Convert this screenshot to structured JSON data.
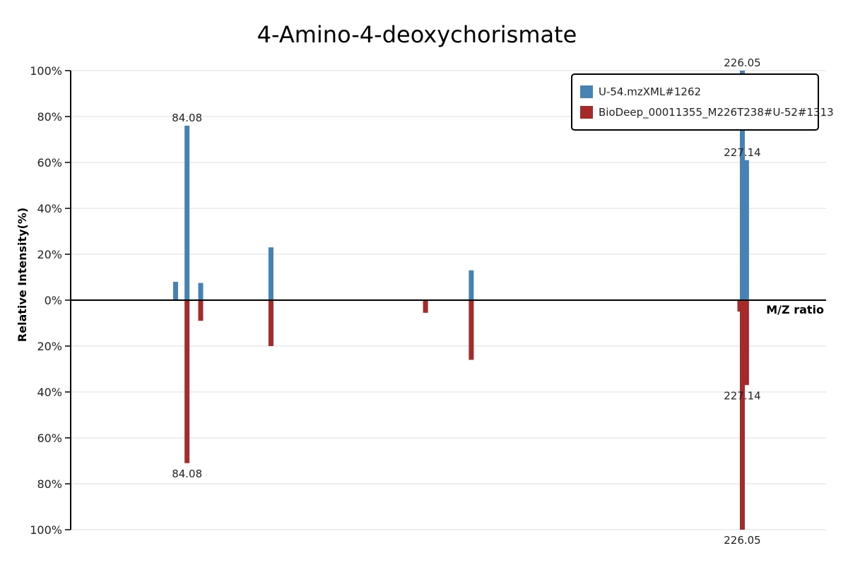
{
  "chart_data": {
    "type": "bar",
    "title": "4-Amino-4-deoxychorismate",
    "ylabel": "Relative Intensity(%)",
    "xlabel": "M/Z ratio",
    "y_ticks_top": [
      "100%",
      "80%",
      "60%",
      "40%",
      "20%",
      "0%"
    ],
    "y_ticks_bottom": [
      "20%",
      "40%",
      "60%",
      "80%",
      "100%"
    ],
    "ylim": [
      -100,
      100
    ],
    "xlim": [
      50,
      248
    ],
    "grid": true,
    "legend_position": "top-right",
    "series": [
      {
        "name": "U-54.mzXML#1262",
        "color": "#4682b4",
        "direction": "up",
        "peaks": [
          {
            "mz": 77.5,
            "intensity": 8
          },
          {
            "mz": 80.5,
            "intensity": 76
          },
          {
            "mz": 84.08,
            "intensity": 7.5
          },
          {
            "mz": 102.5,
            "intensity": 23
          },
          {
            "mz": 155,
            "intensity": 13
          },
          {
            "mz": 226.05,
            "intensity": 100
          },
          {
            "mz": 227.14,
            "intensity": 61
          }
        ],
        "labels": [
          {
            "text": "84.08",
            "mz": 80.5,
            "intensity": 76
          },
          {
            "text": "226.05",
            "mz": 226.05,
            "intensity": 100
          },
          {
            "text": "227.14",
            "mz": 226.05,
            "intensity": 61
          }
        ]
      },
      {
        "name": "BioDeep_00011355_M226T238#U-52#1313",
        "color": "#a52a2a",
        "direction": "down",
        "peaks": [
          {
            "mz": 80.5,
            "intensity": 71
          },
          {
            "mz": 84.08,
            "intensity": 9
          },
          {
            "mz": 102.5,
            "intensity": 20
          },
          {
            "mz": 143,
            "intensity": 5.5
          },
          {
            "mz": 155,
            "intensity": 26
          },
          {
            "mz": 225.4,
            "intensity": 5
          },
          {
            "mz": 226.05,
            "intensity": 100
          },
          {
            "mz": 227.14,
            "intensity": 37
          }
        ],
        "labels": [
          {
            "text": "84.08",
            "mz": 80.5,
            "intensity": 71
          },
          {
            "text": "226.05",
            "mz": 226.05,
            "intensity": 100
          },
          {
            "text": "227.14",
            "mz": 226.05,
            "intensity": 37
          }
        ]
      }
    ]
  }
}
